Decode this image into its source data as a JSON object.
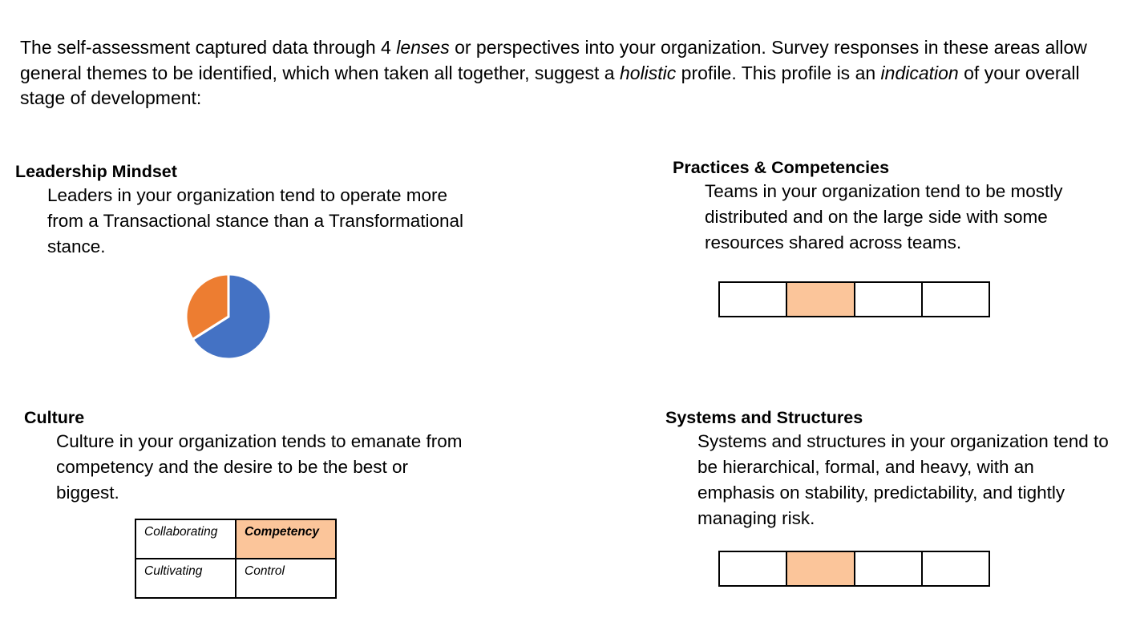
{
  "intro": {
    "segments": [
      {
        "text": "The self-assessment captured data through 4 ",
        "italic": false
      },
      {
        "text": "lenses",
        "italic": true
      },
      {
        "text": " or perspectives into your organization.  Survey responses in these areas allow general themes to be  identified, which when taken all together, suggest a ",
        "italic": false
      },
      {
        "text": "holistic",
        "italic": true
      },
      {
        "text": " profile.  This profile is an ",
        "italic": false
      },
      {
        "text": "indication",
        "italic": true
      },
      {
        "text": " of your overall stage of development:",
        "italic": false
      }
    ]
  },
  "leadership": {
    "heading": "Leadership Mindset",
    "body": "Leaders in your organization tend to operate more from a Transactional stance than a Transformational stance.",
    "chart_data": {
      "type": "pie",
      "title": "",
      "slices": [
        {
          "value": 66,
          "color": "#4472c4"
        },
        {
          "value": 34,
          "color": "#ed7d31"
        }
      ]
    }
  },
  "practices": {
    "heading": "Practices & Competencies",
    "body": "Teams in your organization tend to be mostly distributed and on the large side with some resources shared across teams.",
    "scale": {
      "segments": 4,
      "selected_index": 1,
      "highlight_color": "#fbc59a"
    }
  },
  "culture": {
    "heading": "Culture",
    "body": "Culture in your organization tends to emanate from competency and the desire to be the best or biggest.",
    "grid": {
      "cells": [
        {
          "label": "Collaborating",
          "selected": false
        },
        {
          "label": "Competency",
          "selected": true
        },
        {
          "label": "Cultivating",
          "selected": false
        },
        {
          "label": "Control",
          "selected": false
        }
      ],
      "highlight_color": "#fbc59a"
    }
  },
  "systems": {
    "heading": "Systems and Structures",
    "body": "Systems and structures in your organization tend to be hierarchical, formal, and heavy, with an emphasis on stability, predictability, and tightly managing risk.",
    "scale": {
      "segments": 4,
      "selected_index": 1,
      "highlight_color": "#fbc59a"
    }
  }
}
